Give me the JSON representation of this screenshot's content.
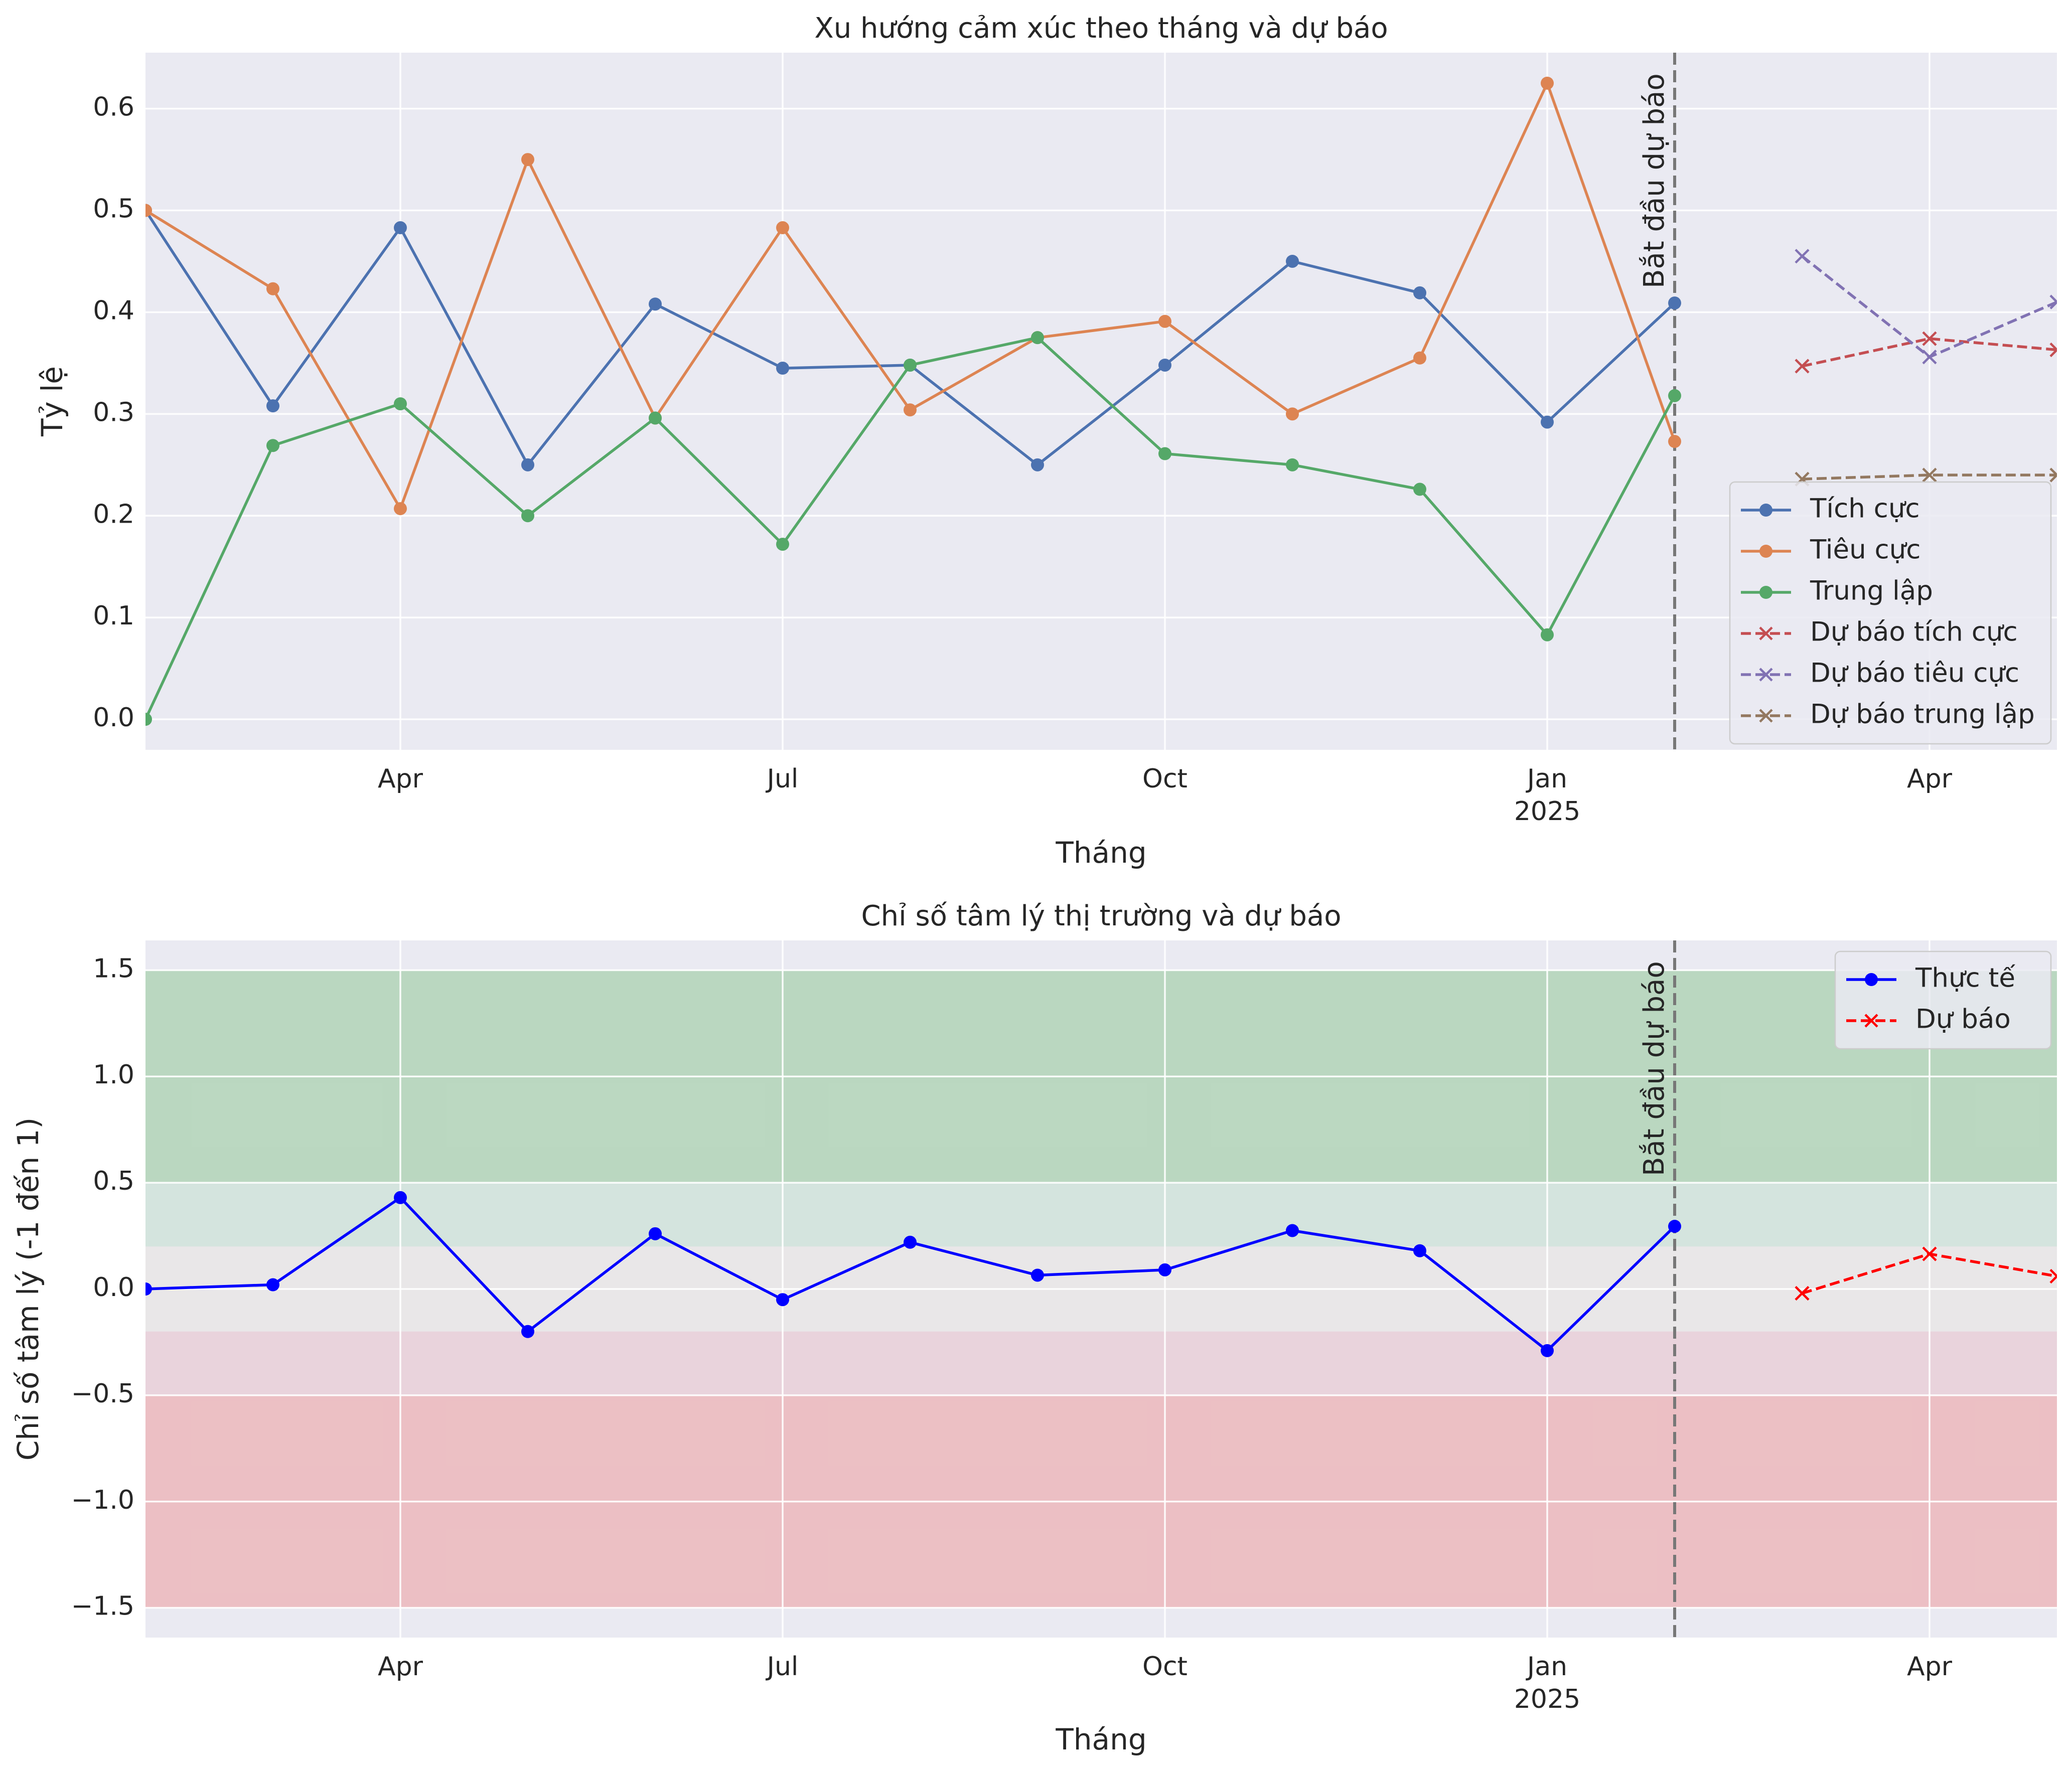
{
  "chart_data": [
    {
      "type": "line",
      "title": "Xu hướng cảm xúc theo tháng và dự báo",
      "xlabel": "Tháng",
      "ylabel": "Tỷ lệ",
      "ylim": [
        -0.03,
        0.655
      ],
      "xlim": [
        "2024-02-01",
        "2025-05-01"
      ],
      "y_ticks": [
        "0.0",
        "0.1",
        "0.2",
        "0.3",
        "0.4",
        "0.5",
        "0.6"
      ],
      "x_ticks": [
        {
          "date": "2024-04-01",
          "label": "Apr",
          "sub": ""
        },
        {
          "date": "2024-07-01",
          "label": "Jul",
          "sub": ""
        },
        {
          "date": "2024-10-01",
          "label": "Oct",
          "sub": ""
        },
        {
          "date": "2025-01-01",
          "label": "Jan",
          "sub": "2025"
        },
        {
          "date": "2025-04-01",
          "label": "Apr",
          "sub": ""
        }
      ],
      "x": [
        "2024-02-01",
        "2024-03-01",
        "2024-04-01",
        "2024-05-01",
        "2024-06-01",
        "2024-07-01",
        "2024-08-01",
        "2024-09-01",
        "2024-10-01",
        "2024-11-01",
        "2024-12-01",
        "2025-01-01",
        "2025-02-01"
      ],
      "series": [
        {
          "name": "Tích cực",
          "color": "#4c72b0",
          "style": "solid",
          "marker": "circle",
          "values": [
            0.5,
            0.308,
            0.483,
            0.25,
            0.408,
            0.345,
            0.348,
            0.25,
            0.348,
            0.45,
            0.419,
            0.292,
            0.409
          ]
        },
        {
          "name": "Tiêu cực",
          "color": "#dd8452",
          "style": "solid",
          "marker": "circle",
          "values": [
            0.5,
            0.423,
            0.207,
            0.55,
            0.296,
            0.483,
            0.304,
            0.375,
            0.391,
            0.3,
            0.355,
            0.625,
            0.273
          ]
        },
        {
          "name": "Trung lập",
          "color": "#55a868",
          "style": "solid",
          "marker": "circle",
          "values": [
            0.0,
            0.269,
            0.31,
            0.2,
            0.296,
            0.172,
            0.348,
            0.375,
            0.261,
            0.25,
            0.226,
            0.083,
            0.318
          ]
        }
      ],
      "forecast_x": [
        "2025-03-01",
        "2025-04-01",
        "2025-05-01"
      ],
      "forecast_series": [
        {
          "name": "Dự báo tích cực",
          "color": "#c44e52",
          "style": "dashed",
          "marker": "x",
          "values": [
            0.347,
            0.374,
            0.363
          ]
        },
        {
          "name": "Dự báo tiêu cực",
          "color": "#8172b3",
          "style": "dashed",
          "marker": "x",
          "values": [
            0.455,
            0.356,
            0.41
          ]
        },
        {
          "name": "Dự báo trung lập",
          "color": "#937860",
          "style": "dashed",
          "marker": "x",
          "values": [
            0.236,
            0.24,
            0.24
          ]
        }
      ],
      "forecast_start": {
        "date": "2025-02-01",
        "label": "Bắt đầu dự báo"
      },
      "legend_position": "lower-right",
      "grid": true
    },
    {
      "type": "line",
      "title": "Chỉ số tâm lý thị trường và dự báo",
      "xlabel": "Tháng",
      "ylabel": "Chỉ số tâm lý (-1 đến 1)",
      "ylim": [
        -1.64,
        1.64
      ],
      "xlim": [
        "2024-02-01",
        "2025-05-01"
      ],
      "y_ticks": [
        "−1.5",
        "−1.0",
        "−0.5",
        "0.0",
        "0.5",
        "1.0",
        "1.5"
      ],
      "x_ticks": [
        {
          "date": "2024-04-01",
          "label": "Apr",
          "sub": ""
        },
        {
          "date": "2024-07-01",
          "label": "Jul",
          "sub": ""
        },
        {
          "date": "2024-10-01",
          "label": "Oct",
          "sub": ""
        },
        {
          "date": "2025-01-01",
          "label": "Jan",
          "sub": "2025"
        },
        {
          "date": "2025-04-01",
          "label": "Apr",
          "sub": ""
        }
      ],
      "bands": [
        {
          "from": 0.5,
          "to": 1.5,
          "color": "#2ca02c",
          "opacity": 0.25
        },
        {
          "from": 0.2,
          "to": 0.5,
          "color": "#55c26a",
          "opacity": 0.15
        },
        {
          "from": -0.2,
          "to": 0.2,
          "color": "#e8e2d6",
          "opacity": 0.35
        },
        {
          "from": -0.5,
          "to": -0.2,
          "color": "#e8a0a8",
          "opacity": 0.3
        },
        {
          "from": -1.5,
          "to": -0.5,
          "color": "#f08080",
          "opacity": 0.4
        }
      ],
      "x": [
        "2024-02-01",
        "2024-03-01",
        "2024-04-01",
        "2024-05-01",
        "2024-06-01",
        "2024-07-01",
        "2024-08-01",
        "2024-09-01",
        "2024-10-01",
        "2024-11-01",
        "2024-12-01",
        "2025-01-01",
        "2025-02-01"
      ],
      "series": [
        {
          "name": "Thực tế",
          "color": "#0000ff",
          "style": "solid",
          "marker": "circle",
          "values": [
            0.0,
            0.02,
            0.43,
            -0.2,
            0.26,
            -0.05,
            0.22,
            0.065,
            0.09,
            0.275,
            0.18,
            -0.29,
            0.295
          ]
        }
      ],
      "forecast_x": [
        "2025-03-01",
        "2025-04-01",
        "2025-05-01"
      ],
      "forecast_series": [
        {
          "name": "Dự báo",
          "color": "#ff0000",
          "style": "dashed",
          "marker": "x",
          "values": [
            -0.02,
            0.165,
            0.06
          ]
        }
      ],
      "forecast_start": {
        "date": "2025-02-01",
        "label": "Bắt đầu dự báo"
      },
      "legend_position": "upper-right",
      "grid": true
    }
  ]
}
